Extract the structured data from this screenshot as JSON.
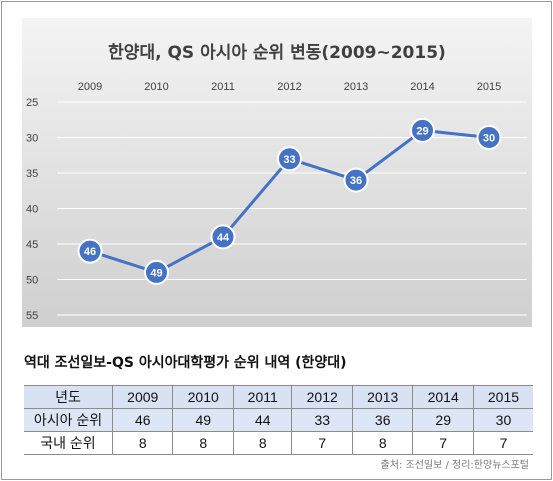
{
  "chart_data": {
    "type": "line",
    "title": "한양대, QS 아시아 순위 변동(2009~2015)",
    "categories": [
      "2009",
      "2010",
      "2011",
      "2012",
      "2013",
      "2014",
      "2015"
    ],
    "series": [
      {
        "values": [
          46,
          49,
          44,
          33,
          36,
          29,
          30
        ]
      }
    ],
    "y_ticks": [
      "25",
      "30",
      "35",
      "40",
      "45",
      "50",
      "55"
    ],
    "ylim": [
      25,
      55
    ],
    "y_inverted": true,
    "x_axis_position": "top",
    "grid": "horizontal",
    "legend": "none",
    "colors": {
      "line": "#4472c4",
      "marker_fill": "#4472c4",
      "marker_stroke": "#ffffff",
      "label_text": "#ffffff",
      "plot_bg_top": "#f4f4f4",
      "plot_bg_bottom": "#cfcfcf"
    }
  },
  "table": {
    "title": "역대 조선일보-QS 아시아대학평가 순위 내역 (한양대)",
    "header": [
      "년도",
      "2009",
      "2010",
      "2011",
      "2012",
      "2013",
      "2014",
      "2015"
    ],
    "rows": [
      [
        "아시아 순위",
        "46",
        "49",
        "44",
        "33",
        "36",
        "29",
        "30"
      ],
      [
        "국내 순위",
        "8",
        "8",
        "8",
        "7",
        "8",
        "7",
        "7"
      ]
    ]
  },
  "source": "출처: 조선일보 / 정리:한양뉴스포털"
}
